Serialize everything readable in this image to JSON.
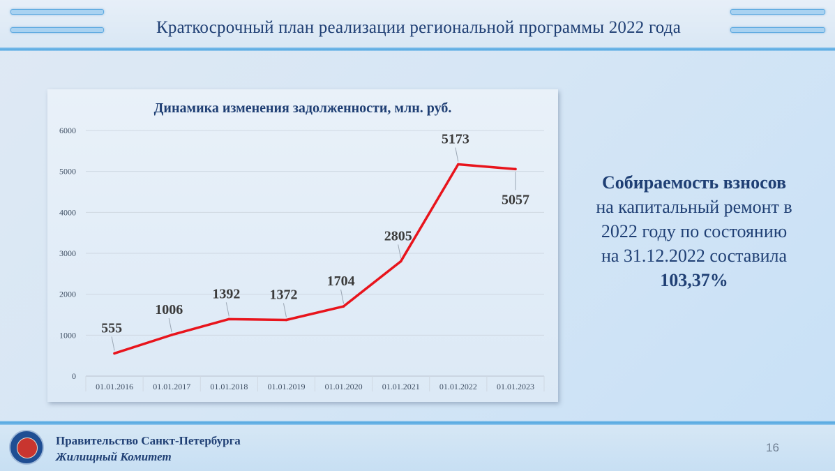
{
  "header": {
    "title": "Краткосрочный план реализации региональной программы 2022 года"
  },
  "chart_data": {
    "type": "line",
    "title": "Динамика изменения задолженности, млн. руб.",
    "xlabel": "",
    "ylabel": "",
    "categories": [
      "01.01.2016",
      "01.01.2017",
      "01.01.2018",
      "01.01.2019",
      "01.01.2020",
      "01.01.2021",
      "01.01.2022",
      "01.01.2023"
    ],
    "series": [
      {
        "values": [
          555,
          1006,
          1392,
          1372,
          1704,
          2805,
          5173,
          5057
        ],
        "color": "#e8141c"
      }
    ],
    "data_labels": [
      "555",
      "1006",
      "1392",
      "1372",
      "1704",
      "2805",
      "5173",
      "5057"
    ],
    "ylim": [
      0,
      6000
    ],
    "yticks": [
      "0",
      "1000",
      "2000",
      "3000",
      "4000",
      "5000",
      "6000"
    ],
    "grid": true,
    "legend": "none"
  },
  "side": {
    "line1": "Собираемость взносов",
    "line2": "на капитальный ремонт в",
    "line3": "2022 году по состоянию",
    "line4": "на 31.12.2022 составила",
    "line5": "103,37%"
  },
  "footer": {
    "org_name": "Правительство Санкт-Петербурга",
    "committee": "Жилищный Комитет",
    "page_number": "16"
  },
  "colors": {
    "accent": "#1f3f74",
    "line": "#e8141c"
  }
}
